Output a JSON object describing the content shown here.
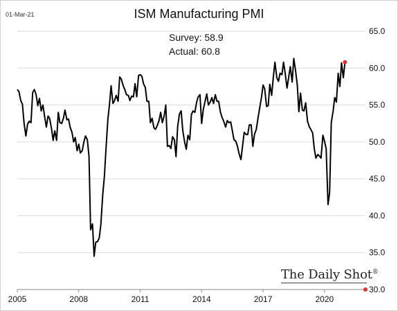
{
  "header": {
    "date_stamp": "01-Mar-21",
    "title": "ISM Manufacturing PMI"
  },
  "annotations": {
    "survey": "Survey: 58.9",
    "actual": "Actual:  60.8"
  },
  "branding": {
    "logo_text": "The Daily Shot",
    "logo_mark": "®"
  },
  "chart_data": {
    "type": "line",
    "title": "ISM Manufacturing PMI",
    "xlabel": "",
    "ylabel": "",
    "xlim": [
      2005.0,
      2022.0
    ],
    "ylim": [
      30.0,
      65.0
    ],
    "x_ticks": [
      2005,
      2008,
      2011,
      2014,
      2017,
      2020
    ],
    "x_tick_labels": [
      "2005",
      "2008",
      "2011",
      "2014",
      "2017",
      "2020"
    ],
    "y_ticks": [
      30,
      35,
      40,
      45,
      50,
      55,
      60,
      65
    ],
    "y_tick_labels": [
      "30.0",
      "35.0",
      "40.0",
      "45.0",
      "50.0",
      "55.0",
      "60.0",
      "65.0"
    ],
    "y_axis_side": "right",
    "grid": "horizontal",
    "line_color": "#000000",
    "marker_color": "#e03030",
    "series": [
      {
        "values": [
          [
            2005.0,
            57.1
          ],
          [
            2005.08,
            56.8
          ],
          [
            2005.17,
            55.6
          ],
          [
            2005.25,
            55.1
          ],
          [
            2005.33,
            52.5
          ],
          [
            2005.42,
            50.8
          ],
          [
            2005.5,
            52.4
          ],
          [
            2005.58,
            52.8
          ],
          [
            2005.67,
            52.6
          ],
          [
            2005.75,
            56.7
          ],
          [
            2005.83,
            57.1
          ],
          [
            2005.92,
            56.4
          ],
          [
            2006.0,
            54.9
          ],
          [
            2006.08,
            55.9
          ],
          [
            2006.17,
            54.2
          ],
          [
            2006.25,
            55.0
          ],
          [
            2006.33,
            53.5
          ],
          [
            2006.42,
            52.0
          ],
          [
            2006.5,
            53.5
          ],
          [
            2006.58,
            53.2
          ],
          [
            2006.67,
            51.8
          ],
          [
            2006.75,
            50.2
          ],
          [
            2006.83,
            51.5
          ],
          [
            2006.92,
            50.2
          ],
          [
            2007.0,
            54.0
          ],
          [
            2007.08,
            52.6
          ],
          [
            2007.17,
            52.5
          ],
          [
            2007.25,
            53.2
          ],
          [
            2007.33,
            54.3
          ],
          [
            2007.42,
            53.0
          ],
          [
            2007.5,
            53.1
          ],
          [
            2007.58,
            52.0
          ],
          [
            2007.67,
            51.3
          ],
          [
            2007.75,
            50.0
          ],
          [
            2007.83,
            50.6
          ],
          [
            2007.92,
            48.8
          ],
          [
            2008.0,
            49.7
          ],
          [
            2008.08,
            48.5
          ],
          [
            2008.17,
            48.8
          ],
          [
            2008.25,
            50.0
          ],
          [
            2008.33,
            50.8
          ],
          [
            2008.42,
            50.3
          ],
          [
            2008.5,
            48.0
          ],
          [
            2008.58,
            38.1
          ],
          [
            2008.67,
            38.9
          ],
          [
            2008.75,
            34.5
          ],
          [
            2008.83,
            36.4
          ],
          [
            2008.92,
            36.5
          ],
          [
            2009.0,
            37.0
          ],
          [
            2009.08,
            38.8
          ],
          [
            2009.17,
            42.8
          ],
          [
            2009.25,
            45.3
          ],
          [
            2009.33,
            49.0
          ],
          [
            2009.42,
            53.0
          ],
          [
            2009.5,
            55.0
          ],
          [
            2009.58,
            57.6
          ],
          [
            2009.67,
            55.2
          ],
          [
            2009.75,
            55.6
          ],
          [
            2009.83,
            56.3
          ],
          [
            2009.92,
            55.5
          ],
          [
            2010.0,
            58.8
          ],
          [
            2010.08,
            58.5
          ],
          [
            2010.17,
            57.6
          ],
          [
            2010.25,
            57.1
          ],
          [
            2010.33,
            56.4
          ],
          [
            2010.42,
            56.3
          ],
          [
            2010.5,
            55.6
          ],
          [
            2010.58,
            56.2
          ],
          [
            2010.67,
            56.1
          ],
          [
            2010.75,
            57.9
          ],
          [
            2010.83,
            56.1
          ],
          [
            2010.92,
            59.0
          ],
          [
            2011.0,
            59.1
          ],
          [
            2011.08,
            58.9
          ],
          [
            2011.17,
            57.8
          ],
          [
            2011.25,
            57.4
          ],
          [
            2011.33,
            55.5
          ],
          [
            2011.42,
            55.5
          ],
          [
            2011.5,
            52.6
          ],
          [
            2011.58,
            53.2
          ],
          [
            2011.67,
            51.9
          ],
          [
            2011.75,
            51.7
          ],
          [
            2011.83,
            52.2
          ],
          [
            2011.92,
            52.9
          ],
          [
            2012.0,
            54.0
          ],
          [
            2012.08,
            52.6
          ],
          [
            2012.17,
            53.5
          ],
          [
            2012.25,
            55.0
          ],
          [
            2012.33,
            49.4
          ],
          [
            2012.42,
            49.5
          ],
          [
            2012.5,
            49.1
          ],
          [
            2012.58,
            50.7
          ],
          [
            2012.67,
            50.3
          ],
          [
            2012.75,
            48.0
          ],
          [
            2012.83,
            52.1
          ],
          [
            2012.92,
            53.8
          ],
          [
            2013.0,
            54.2
          ],
          [
            2013.08,
            51.5
          ],
          [
            2013.17,
            50.0
          ],
          [
            2013.25,
            49.0
          ],
          [
            2013.33,
            50.9
          ],
          [
            2013.42,
            50.3
          ],
          [
            2013.5,
            53.7
          ],
          [
            2013.58,
            54.2
          ],
          [
            2013.67,
            54.0
          ],
          [
            2013.75,
            55.3
          ],
          [
            2013.83,
            56.1
          ],
          [
            2013.92,
            56.4
          ],
          [
            2014.0,
            52.5
          ],
          [
            2014.08,
            54.4
          ],
          [
            2014.17,
            55.5
          ],
          [
            2014.25,
            56.5
          ],
          [
            2014.33,
            55.0
          ],
          [
            2014.42,
            55.4
          ],
          [
            2014.5,
            56.0
          ],
          [
            2014.58,
            55.2
          ],
          [
            2014.67,
            56.4
          ],
          [
            2014.75,
            55.5
          ],
          [
            2014.83,
            55.5
          ],
          [
            2014.92,
            54.0
          ],
          [
            2015.0,
            53.3
          ],
          [
            2015.08,
            52.8
          ],
          [
            2015.17,
            52.0
          ],
          [
            2015.25,
            52.9
          ],
          [
            2015.33,
            52.6
          ],
          [
            2015.42,
            52.7
          ],
          [
            2015.5,
            51.5
          ],
          [
            2015.58,
            50.3
          ],
          [
            2015.67,
            50.1
          ],
          [
            2015.75,
            49.4
          ],
          [
            2015.83,
            48.4
          ],
          [
            2015.92,
            47.6
          ],
          [
            2016.0,
            49.5
          ],
          [
            2016.08,
            51.3
          ],
          [
            2016.17,
            51.0
          ],
          [
            2016.25,
            51.0
          ],
          [
            2016.33,
            52.3
          ],
          [
            2016.42,
            52.3
          ],
          [
            2016.5,
            49.4
          ],
          [
            2016.58,
            51.0
          ],
          [
            2016.67,
            51.7
          ],
          [
            2016.75,
            53.2
          ],
          [
            2016.83,
            54.5
          ],
          [
            2016.92,
            56.0
          ],
          [
            2017.0,
            57.7
          ],
          [
            2017.08,
            57.2
          ],
          [
            2017.17,
            54.8
          ],
          [
            2017.25,
            54.9
          ],
          [
            2017.33,
            57.8
          ],
          [
            2017.42,
            56.3
          ],
          [
            2017.5,
            58.8
          ],
          [
            2017.58,
            60.8
          ],
          [
            2017.67,
            58.7
          ],
          [
            2017.75,
            58.2
          ],
          [
            2017.83,
            59.3
          ],
          [
            2017.92,
            59.1
          ],
          [
            2018.0,
            60.8
          ],
          [
            2018.08,
            59.3
          ],
          [
            2018.17,
            57.3
          ],
          [
            2018.25,
            58.7
          ],
          [
            2018.33,
            60.2
          ],
          [
            2018.42,
            58.1
          ],
          [
            2018.5,
            61.3
          ],
          [
            2018.58,
            59.8
          ],
          [
            2018.67,
            57.7
          ],
          [
            2018.75,
            54.1
          ],
          [
            2018.83,
            56.6
          ],
          [
            2018.92,
            54.3
          ],
          [
            2019.0,
            54.2
          ],
          [
            2019.08,
            55.3
          ],
          [
            2019.17,
            52.8
          ],
          [
            2019.25,
            52.1
          ],
          [
            2019.33,
            51.7
          ],
          [
            2019.42,
            51.2
          ],
          [
            2019.5,
            49.1
          ],
          [
            2019.58,
            47.8
          ],
          [
            2019.67,
            48.3
          ],
          [
            2019.75,
            48.1
          ],
          [
            2019.83,
            47.8
          ],
          [
            2019.92,
            50.9
          ],
          [
            2020.0,
            50.1
          ],
          [
            2020.08,
            49.1
          ],
          [
            2020.17,
            41.5
          ],
          [
            2020.25,
            43.1
          ],
          [
            2020.33,
            52.6
          ],
          [
            2020.42,
            54.2
          ],
          [
            2020.5,
            56.0
          ],
          [
            2020.58,
            55.4
          ],
          [
            2020.67,
            59.3
          ],
          [
            2020.75,
            57.5
          ],
          [
            2020.83,
            60.7
          ],
          [
            2020.92,
            58.7
          ],
          [
            2021.0,
            60.8
          ]
        ]
      }
    ],
    "highlight_points": [
      {
        "x": 2021.0,
        "y": 60.8
      },
      {
        "x": 2022.0,
        "y": 30.0
      }
    ]
  }
}
